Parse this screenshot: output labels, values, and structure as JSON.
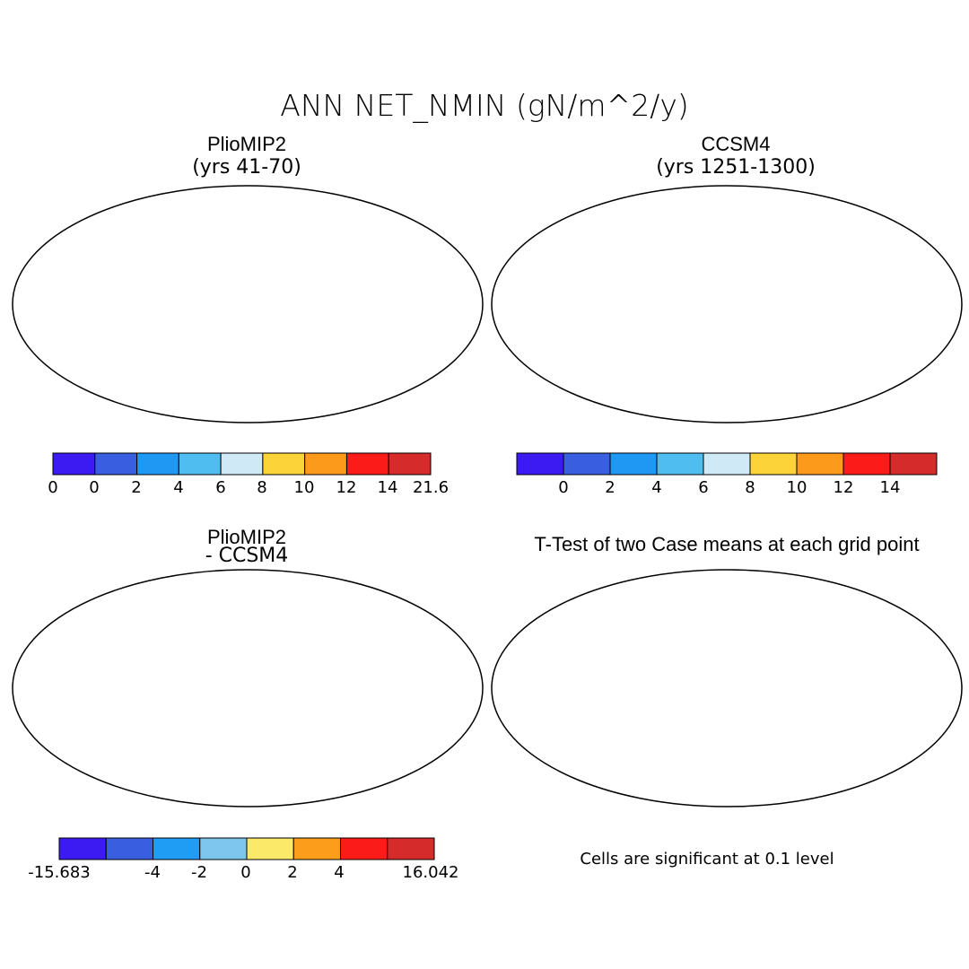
{
  "title": "ANN NET_NMIN (gN/m^2/y)",
  "panels": [
    {
      "id": "pliomip2",
      "title": "PlioMIP2",
      "subtitle": "(yrs 41-70)",
      "colorbar": {
        "colors": [
          "#3b1bf2",
          "#3a5ee0",
          "#1f98f3",
          "#4fbdf0",
          "#cfeaf6",
          "#fdd33a",
          "#fc9a1c",
          "#fb1c1a",
          "#d62b2b"
        ],
        "ticks": [
          "0",
          "0",
          "2",
          "4",
          "6",
          "8",
          "10",
          "12",
          "14",
          "21.6"
        ]
      }
    },
    {
      "id": "ccsm4",
      "title": "CCSM4",
      "subtitle": "(yrs 1251-1300)",
      "colorbar": {
        "colors": [
          "#3b1bf2",
          "#3a5ee0",
          "#1f98f3",
          "#4fbdf0",
          "#cfeaf6",
          "#fdd33a",
          "#fc9a1c",
          "#fb1c1a",
          "#d62b2b"
        ],
        "ticks": [
          "0",
          "2",
          "4",
          "6",
          "8",
          "10",
          "12",
          "14"
        ]
      }
    },
    {
      "id": "difference",
      "title": "PlioMIP2",
      "subtitle": "- CCSM4",
      "colorbar": {
        "colors": [
          "#3b1bf2",
          "#3a5ee0",
          "#1f9cf4",
          "#7fc6ef",
          "#fbe96a",
          "#fc9e1c",
          "#fb1c1a",
          "#d62b2b"
        ],
        "ticks": [
          "-15.683",
          "-4",
          "-2",
          "0",
          "2",
          "4",
          "16.042"
        ]
      }
    },
    {
      "id": "ttest",
      "title": "T-Test of two Case means at each grid point",
      "note": "Cells are significant at 0.1 level"
    }
  ]
}
